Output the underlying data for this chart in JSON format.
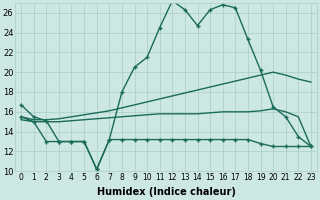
{
  "xlabel": "Humidex (Indice chaleur)",
  "ylabel": "",
  "bg_color": "#cde8e2",
  "grid_color": "#aaccc6",
  "line_color": "#1a6b5a",
  "xlim": [
    -0.5,
    23.5
  ],
  "ylim": [
    10,
    27
  ],
  "xtick_labels": [
    "0",
    "1",
    "2",
    "3",
    "4",
    "5",
    "6",
    "7",
    "8",
    "9",
    "10",
    "11",
    "12",
    "13",
    "14",
    "15",
    "16",
    "17",
    "18",
    "19",
    "20",
    "21",
    "22",
    "23"
  ],
  "xticks": [
    0,
    1,
    2,
    3,
    4,
    5,
    6,
    7,
    8,
    9,
    10,
    11,
    12,
    13,
    14,
    15,
    16,
    17,
    18,
    19,
    20,
    21,
    22,
    23
  ],
  "yticks": [
    10,
    12,
    14,
    16,
    18,
    20,
    22,
    24,
    26
  ],
  "series": [
    {
      "x": [
        0,
        1,
        2,
        3,
        4,
        5,
        6,
        7,
        8,
        9,
        10,
        11,
        12,
        13,
        14,
        15,
        16,
        17,
        18,
        19,
        20,
        21,
        22,
        23
      ],
      "y": [
        16.7,
        15.5,
        15.1,
        13.0,
        13.0,
        13.0,
        10.2,
        13.2,
        18.0,
        20.5,
        21.5,
        24.5,
        27.2,
        26.3,
        24.7,
        26.3,
        26.8,
        26.5,
        23.3,
        20.2,
        16.5,
        15.5,
        13.5,
        12.5
      ],
      "marker": "+",
      "lw": 1.0
    },
    {
      "x": [
        0,
        1,
        2,
        3,
        4,
        5,
        6,
        7,
        8,
        9,
        10,
        11,
        12,
        13,
        14,
        15,
        16,
        17,
        18,
        19,
        20,
        21,
        22,
        23
      ],
      "y": [
        15.5,
        15.2,
        15.2,
        15.3,
        15.5,
        15.7,
        15.9,
        16.1,
        16.4,
        16.7,
        17.0,
        17.3,
        17.6,
        17.9,
        18.2,
        18.5,
        18.8,
        19.1,
        19.4,
        19.7,
        20.0,
        19.7,
        19.3,
        19.0
      ],
      "marker": null,
      "lw": 1.0
    },
    {
      "x": [
        0,
        1,
        2,
        3,
        4,
        5,
        6,
        7,
        8,
        9,
        10,
        11,
        12,
        13,
        14,
        15,
        16,
        17,
        18,
        19,
        20,
        21,
        22,
        23
      ],
      "y": [
        15.2,
        15.0,
        15.0,
        15.0,
        15.1,
        15.2,
        15.3,
        15.4,
        15.5,
        15.6,
        15.7,
        15.8,
        15.8,
        15.8,
        15.8,
        15.9,
        16.0,
        16.0,
        16.0,
        16.1,
        16.3,
        16.0,
        15.5,
        12.5
      ],
      "marker": null,
      "lw": 1.0
    },
    {
      "x": [
        0,
        1,
        2,
        3,
        4,
        5,
        6,
        7,
        8,
        9,
        10,
        11,
        12,
        13,
        14,
        15,
        16,
        17,
        18,
        19,
        20,
        21,
        22,
        23
      ],
      "y": [
        15.5,
        15.0,
        13.0,
        13.0,
        13.0,
        13.0,
        10.2,
        13.2,
        13.2,
        13.2,
        13.2,
        13.2,
        13.2,
        13.2,
        13.2,
        13.2,
        13.2,
        13.2,
        13.2,
        12.8,
        12.5,
        12.5,
        12.5,
        12.5
      ],
      "marker": "+",
      "lw": 1.0
    }
  ]
}
